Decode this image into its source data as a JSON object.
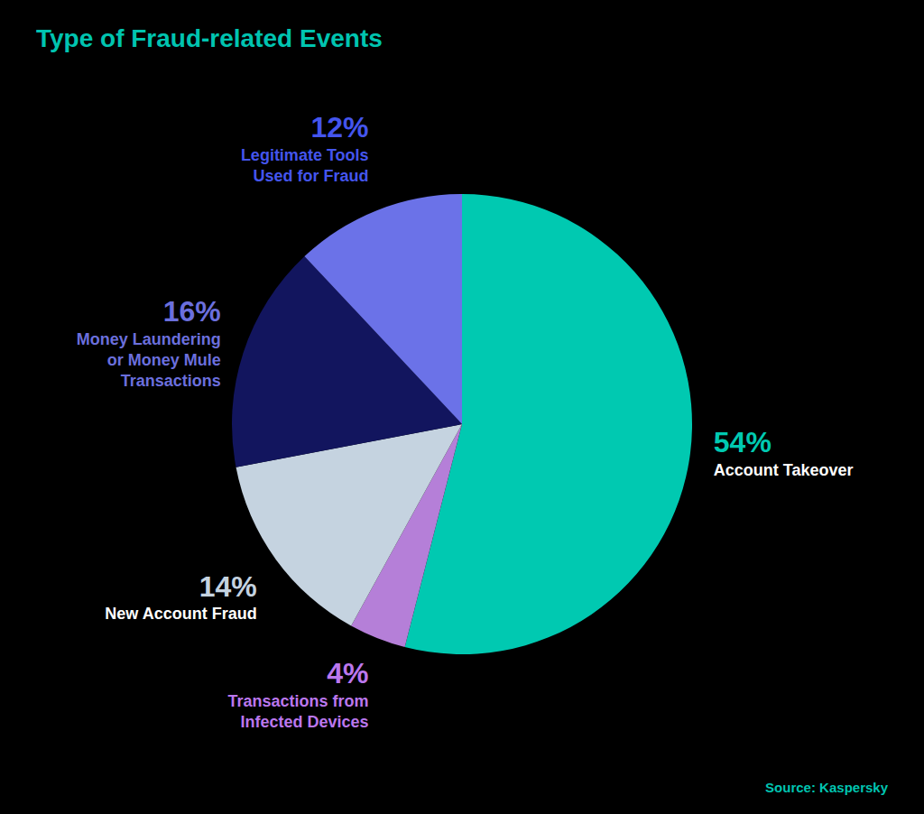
{
  "chart_data": {
    "type": "pie",
    "title": "Type of Fraud-related Events",
    "categories": [
      "Account Takeover",
      "Transactions from\nInfected Devices",
      "New Account Fraud",
      "Money Laundering\nor Money Mule\nTransactions",
      "Legitimate Tools\nUsed for Fraud"
    ],
    "values": [
      54,
      4,
      14,
      16,
      12
    ],
    "value_labels": [
      "54%",
      "4%",
      "14%",
      "16%",
      "12%"
    ],
    "colors": [
      "#00C9B1",
      "#B57FD8",
      "#C5D3E0",
      "#12155E",
      "#6B72E8"
    ],
    "data_labels": true,
    "annotations": [
      "Source: Kaspersky"
    ]
  }
}
